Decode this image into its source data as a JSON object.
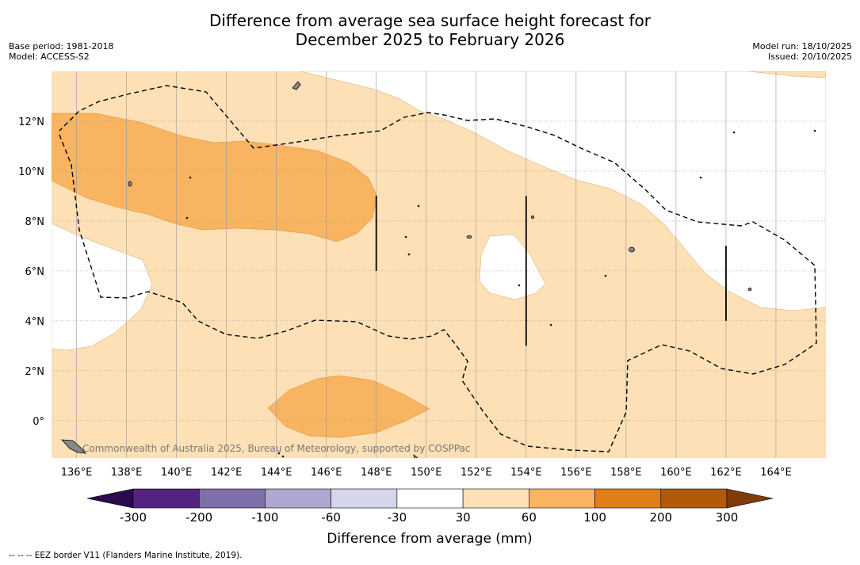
{
  "title": {
    "line1": "Difference from average sea surface height forecast for",
    "line2": "December 2025 to February 2026"
  },
  "meta": {
    "base_period": "Base period: 1981-2018",
    "model": "Model: ACCESS-S2",
    "model_run": "Model run: 18/10/2025",
    "issued": "Issued: 20/10/2025"
  },
  "map": {
    "lon_min": 135,
    "lon_max": 166,
    "lat_min": -1.5,
    "lat_max": 14,
    "lon_ticks": [
      136,
      138,
      140,
      142,
      144,
      146,
      148,
      150,
      152,
      154,
      156,
      158,
      160,
      162,
      164
    ],
    "lon_labels": [
      "136°E",
      "138°E",
      "140°E",
      "142°E",
      "144°E",
      "146°E",
      "148°E",
      "150°E",
      "152°E",
      "154°E",
      "156°E",
      "158°E",
      "160°E",
      "162°E",
      "164°E"
    ],
    "lat_ticks": [
      0,
      2,
      4,
      6,
      8,
      10,
      12
    ],
    "lat_labels": [
      "0°",
      "2°N",
      "4°N",
      "6°N",
      "8°N",
      "10°N",
      "12°N"
    ],
    "copyright": "Commonwealth of Australia 2025, Bureau of Meteorology, supported by COSPPac",
    "eez_segments": [
      {
        "lon": 148,
        "lat_from": 6,
        "lat_to": 9
      },
      {
        "lon": 154,
        "lat_from": 3,
        "lat_to": 9
      },
      {
        "lon": 162,
        "lat_from": 4,
        "lat_to": 7
      }
    ]
  },
  "colorbar": {
    "title": "Difference from average (mm)",
    "labels": [
      "-300",
      "-200",
      "-100",
      "-60",
      "-30",
      "30",
      "60",
      "100",
      "200",
      "300"
    ],
    "colors": [
      "#55237f",
      "#7e6faa",
      "#aea8d0",
      "#d6d6ea",
      "#ffffff",
      "#fde0b5",
      "#f9b461",
      "#df7f16",
      "#b15a0a"
    ],
    "extend_low_color": "#2d0a4e",
    "extend_high_color": "#7f3b08"
  },
  "footnote": "-- -- -- EEZ border V11 (Flanders Marine Institute, 2019)."
}
